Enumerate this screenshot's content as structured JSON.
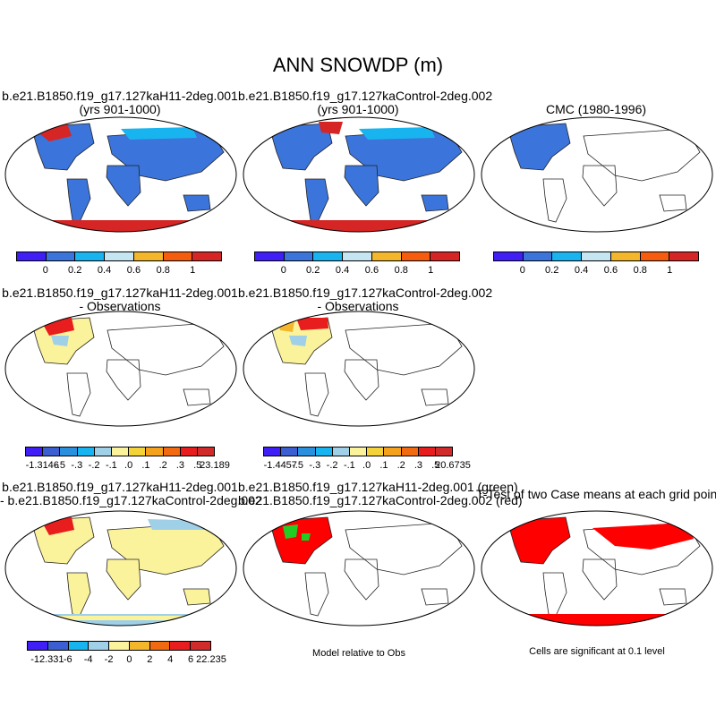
{
  "title": "ANN SNOWDP (m)",
  "panels": [
    {
      "line1": "b.e21.B1850.f19_g17.127kaH11-2deg.001",
      "line2": "(yrs 901-1000)"
    },
    {
      "line1": "b.e21.B1850.f19_g17.127kaControl-2deg.002",
      "line2": "(yrs 901-1000)"
    },
    {
      "line1": "",
      "line2": "CMC (1980-1996)"
    },
    {
      "line1": "b.e21.B1850.f19_g17.127kaH11-2deg.001",
      "line2": "- Observations"
    },
    {
      "line1": "b.e21.B1850.f19_g17.127kaControl-2deg.002",
      "line2": "- Observations"
    },
    {
      "line1": "b.e21.B1850.f19_g17.127kaH11-2deg.001",
      "line2": "- b.e21.B1850.f19_g17.127kaControl-2deg.002"
    },
    {
      "line1": "b.e21.B1850.f19_g17.127kaH11-2deg.001 (green)",
      "line2": "b.e21.B1850.f19_g17.127kaControl-2deg.002 (red)"
    },
    {
      "line1": "",
      "line2": "T-Test of two Case means at each grid point"
    }
  ],
  "colorbars": {
    "abs": {
      "labels": [
        "0",
        "0.2",
        "0.4",
        "0.6",
        "0.8",
        "1"
      ],
      "colors": [
        "#3f1ff5",
        "#3b74da",
        "#18b4ef",
        "#c6e5f2",
        "#f4b72b",
        "#f55c0e",
        "#d62525"
      ]
    },
    "diff1": {
      "labels": [
        "-1.3146",
        "-.5",
        "-.3",
        "-.2",
        "-.1",
        ".0",
        ".1",
        ".2",
        ".3",
        ".5",
        "23.189"
      ],
      "colors": [
        "#3f1ff5",
        "#3b5fd0",
        "#2a8fdc",
        "#18b4ef",
        "#9fd0e8",
        "#fbf29c",
        "#f4d23a",
        "#f4a21c",
        "#f26a0f",
        "#e81d1d",
        "#d12a2a"
      ]
    },
    "diff2": {
      "labels": [
        "-1.4457",
        "-.5",
        "-.3",
        "-.2",
        "-.1",
        ".0",
        ".1",
        ".2",
        ".3",
        ".5",
        "20.6735"
      ],
      "colors": [
        "#3f1ff5",
        "#3b5fd0",
        "#2a8fdc",
        "#18b4ef",
        "#9fd0e8",
        "#fbf29c",
        "#f4d23a",
        "#f4a21c",
        "#f26a0f",
        "#e81d1d",
        "#d12a2a"
      ]
    },
    "diff3": {
      "labels": [
        "-12.331",
        "-6",
        "-4",
        "-2",
        "0",
        "2",
        "4",
        "6",
        "22.235"
      ],
      "colors": [
        "#3f1ff5",
        "#3b5fd0",
        "#18b4ef",
        "#9fd0e8",
        "#fbf29c",
        "#f4b72b",
        "#f26a0f",
        "#e81d1d",
        "#d12a2a"
      ]
    }
  },
  "notes": {
    "model_relative": "Model relative to Obs",
    "significance": "Cells are significant at 0.1 level"
  },
  "chart_data": [
    {
      "type": "heatmap",
      "panel": 1,
      "title": "b.e21.B1850.f19_g17.127kaH11-2deg.001 (yrs 901-1000)",
      "colorbar_levels": [
        0,
        0.2,
        0.4,
        0.6,
        0.8,
        1
      ]
    },
    {
      "type": "heatmap",
      "panel": 2,
      "title": "b.e21.B1850.f19_g17.127kaControl-2deg.002 (yrs 901-1000)",
      "colorbar_levels": [
        0,
        0.2,
        0.4,
        0.6,
        0.8,
        1
      ]
    },
    {
      "type": "heatmap",
      "panel": 3,
      "title": "CMC (1980-1996)",
      "colorbar_levels": [
        0,
        0.2,
        0.4,
        0.6,
        0.8,
        1
      ]
    },
    {
      "type": "heatmap",
      "panel": 4,
      "title": "b.e21.B1850.f19_g17.127kaH11-2deg.001 - Observations",
      "colorbar_levels": [
        -1.3146,
        -0.5,
        -0.3,
        -0.2,
        -0.1,
        0,
        0.1,
        0.2,
        0.3,
        0.5,
        23.189
      ]
    },
    {
      "type": "heatmap",
      "panel": 5,
      "title": "b.e21.B1850.f19_g17.127kaControl-2deg.002 - Observations",
      "colorbar_levels": [
        -1.4457,
        -0.5,
        -0.3,
        -0.2,
        -0.1,
        0,
        0.1,
        0.2,
        0.3,
        0.5,
        20.6735
      ]
    },
    {
      "type": "heatmap",
      "panel": 6,
      "title": "b.e21.B1850.f19_g17.127kaH11-2deg.001 - b.e21.B1850.f19_g17.127kaControl-2deg.002",
      "colorbar_levels": [
        -12.331,
        -6,
        -4,
        -2,
        0,
        2,
        4,
        6,
        22.235
      ]
    },
    {
      "type": "heatmap",
      "panel": 7,
      "title": "b.e21.B1850.f19_g17.127kaH11-2deg.001 (green) b.e21.B1850.f19_g17.127kaControl-2deg.002 (red)",
      "note": "Model relative to Obs"
    },
    {
      "type": "heatmap",
      "panel": 8,
      "title": "T-Test of two Case means at each grid point",
      "note": "Cells are significant at 0.1 level"
    }
  ]
}
